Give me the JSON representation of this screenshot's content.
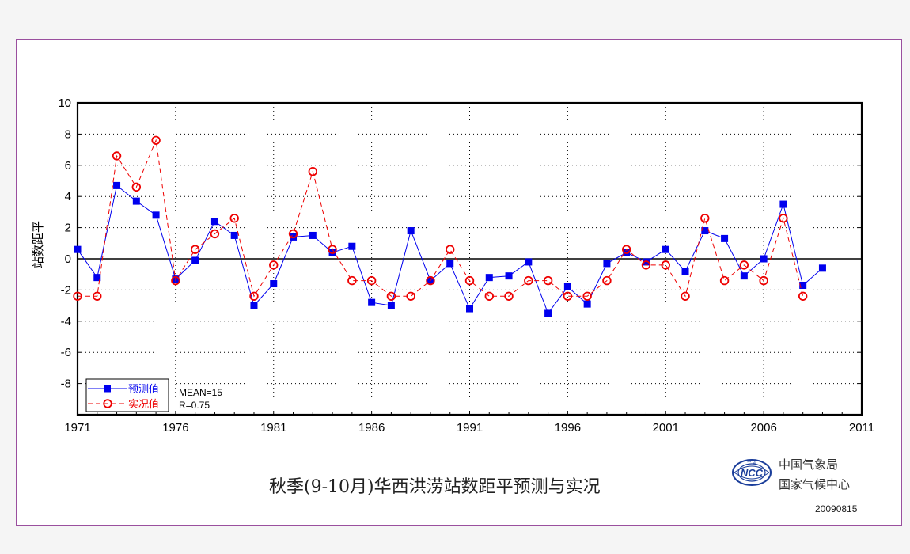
{
  "chart_data": {
    "type": "line",
    "title": "秋季(9-10月)华西洪涝站数距平预测与实况",
    "ylabel": "站数距平",
    "xlabel": "",
    "xlim": [
      1971,
      2011
    ],
    "ylim": [
      -10,
      10
    ],
    "xticks": [
      1971,
      1976,
      1981,
      1986,
      1991,
      1996,
      2001,
      2006,
      2011
    ],
    "yticks": [
      10,
      8,
      6,
      4,
      2,
      0,
      -2,
      -4,
      -6,
      -8
    ],
    "grid": true,
    "legend_position": "bottom-left",
    "series": [
      {
        "name": "预测值",
        "color": "#0000ee",
        "marker": "filled-square",
        "line": "solid",
        "x": [
          1971,
          1972,
          1973,
          1974,
          1975,
          1976,
          1977,
          1978,
          1979,
          1980,
          1981,
          1982,
          1983,
          1984,
          1985,
          1986,
          1987,
          1988,
          1989,
          1990,
          1991,
          1992,
          1993,
          1994,
          1995,
          1996,
          1997,
          1998,
          1999,
          2000,
          2001,
          2002,
          2003,
          2004,
          2005,
          2006,
          2007,
          2008,
          2009
        ],
        "values": [
          0.6,
          -1.2,
          4.7,
          3.7,
          2.8,
          -1.3,
          -0.1,
          2.4,
          1.5,
          -3.0,
          -1.6,
          1.4,
          1.5,
          0.4,
          0.8,
          -2.8,
          -3.0,
          1.8,
          -1.4,
          -0.3,
          -3.2,
          -1.2,
          -1.1,
          -0.2,
          -3.5,
          -1.8,
          -2.9,
          -0.3,
          0.4,
          -0.2,
          0.6,
          -0.8,
          1.8,
          1.3,
          -1.1,
          0.0,
          3.5,
          -1.7,
          -0.6
        ]
      },
      {
        "name": "实况值",
        "color": "#ee0000",
        "marker": "open-circle",
        "line": "dashed",
        "x": [
          1971,
          1972,
          1973,
          1974,
          1975,
          1976,
          1977,
          1978,
          1979,
          1980,
          1981,
          1982,
          1983,
          1984,
          1985,
          1986,
          1987,
          1988,
          1989,
          1990,
          1991,
          1992,
          1993,
          1994,
          1995,
          1996,
          1997,
          1998,
          1999,
          2000,
          2001,
          2002,
          2003,
          2004,
          2005,
          2006,
          2007,
          2008
        ],
        "values": [
          -2.4,
          -2.4,
          6.6,
          4.6,
          7.6,
          -1.4,
          0.6,
          1.6,
          2.6,
          -2.4,
          -0.4,
          1.6,
          5.6,
          0.6,
          -1.4,
          -1.4,
          -2.4,
          -2.4,
          -1.4,
          0.6,
          -1.4,
          -2.4,
          -2.4,
          -1.4,
          -1.4,
          -2.4,
          -2.4,
          -1.4,
          0.6,
          -0.4,
          -0.4,
          -2.4,
          2.6,
          -1.4,
          -0.4,
          -1.4,
          2.6,
          -2.4
        ]
      }
    ],
    "annotations": [
      "MEAN=15",
      "R=0.75"
    ]
  },
  "org": {
    "line1": "中国气象局",
    "line2": "国家气候中心",
    "logo_text": "NCC",
    "logo_top": "中 国"
  },
  "date": "20090815",
  "colors": {
    "frame": "#9a4f9e",
    "forecast": "#0000ee",
    "observed": "#ee0000"
  }
}
